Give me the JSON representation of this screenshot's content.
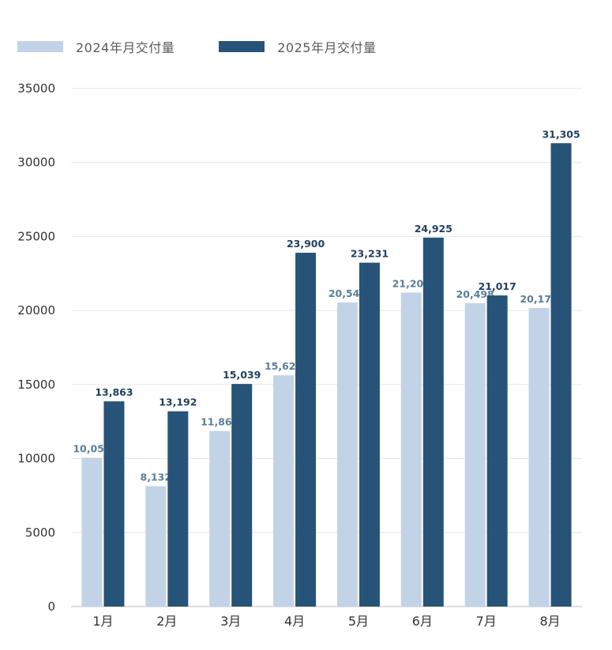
{
  "legend": {
    "items": [
      {
        "label": "2024年月交付量"
      },
      {
        "label": "2025年月交付量"
      }
    ]
  },
  "colors": {
    "series_2024": "#c2d3e8",
    "series_2025": "#275378",
    "label_2024": "#5a7e98",
    "label_2025": "#1f3f5f",
    "axis_text": "#333333",
    "grid": "#e6e6e6"
  },
  "chart_data": {
    "type": "bar",
    "categories": [
      "1月",
      "2月",
      "3月",
      "4月",
      "5月",
      "6月",
      "7月",
      "8月"
    ],
    "series": [
      {
        "name": "2024年月交付量",
        "values": [
          10055,
          8132,
          11866,
          15620,
          20544,
          21209,
          20498,
          20176
        ]
      },
      {
        "name": "2025年月交付量",
        "values": [
          13863,
          13192,
          15039,
          23900,
          23231,
          24925,
          21017,
          31305
        ]
      }
    ],
    "data_labels": [
      [
        "10,055",
        "8,132",
        "11,866",
        "15,620",
        "20,544",
        "21,209",
        "20,498",
        "20,176"
      ],
      [
        "13,863",
        "13,192",
        "15,039",
        "23,900",
        "23,231",
        "24,925",
        "21,017",
        "31,305"
      ]
    ],
    "yticks": [
      "0",
      "5000",
      "10000",
      "15000",
      "20000",
      "25000",
      "30000",
      "35000"
    ],
    "ylim": [
      0,
      35000
    ],
    "grid": true,
    "legend_position": "top-left"
  }
}
